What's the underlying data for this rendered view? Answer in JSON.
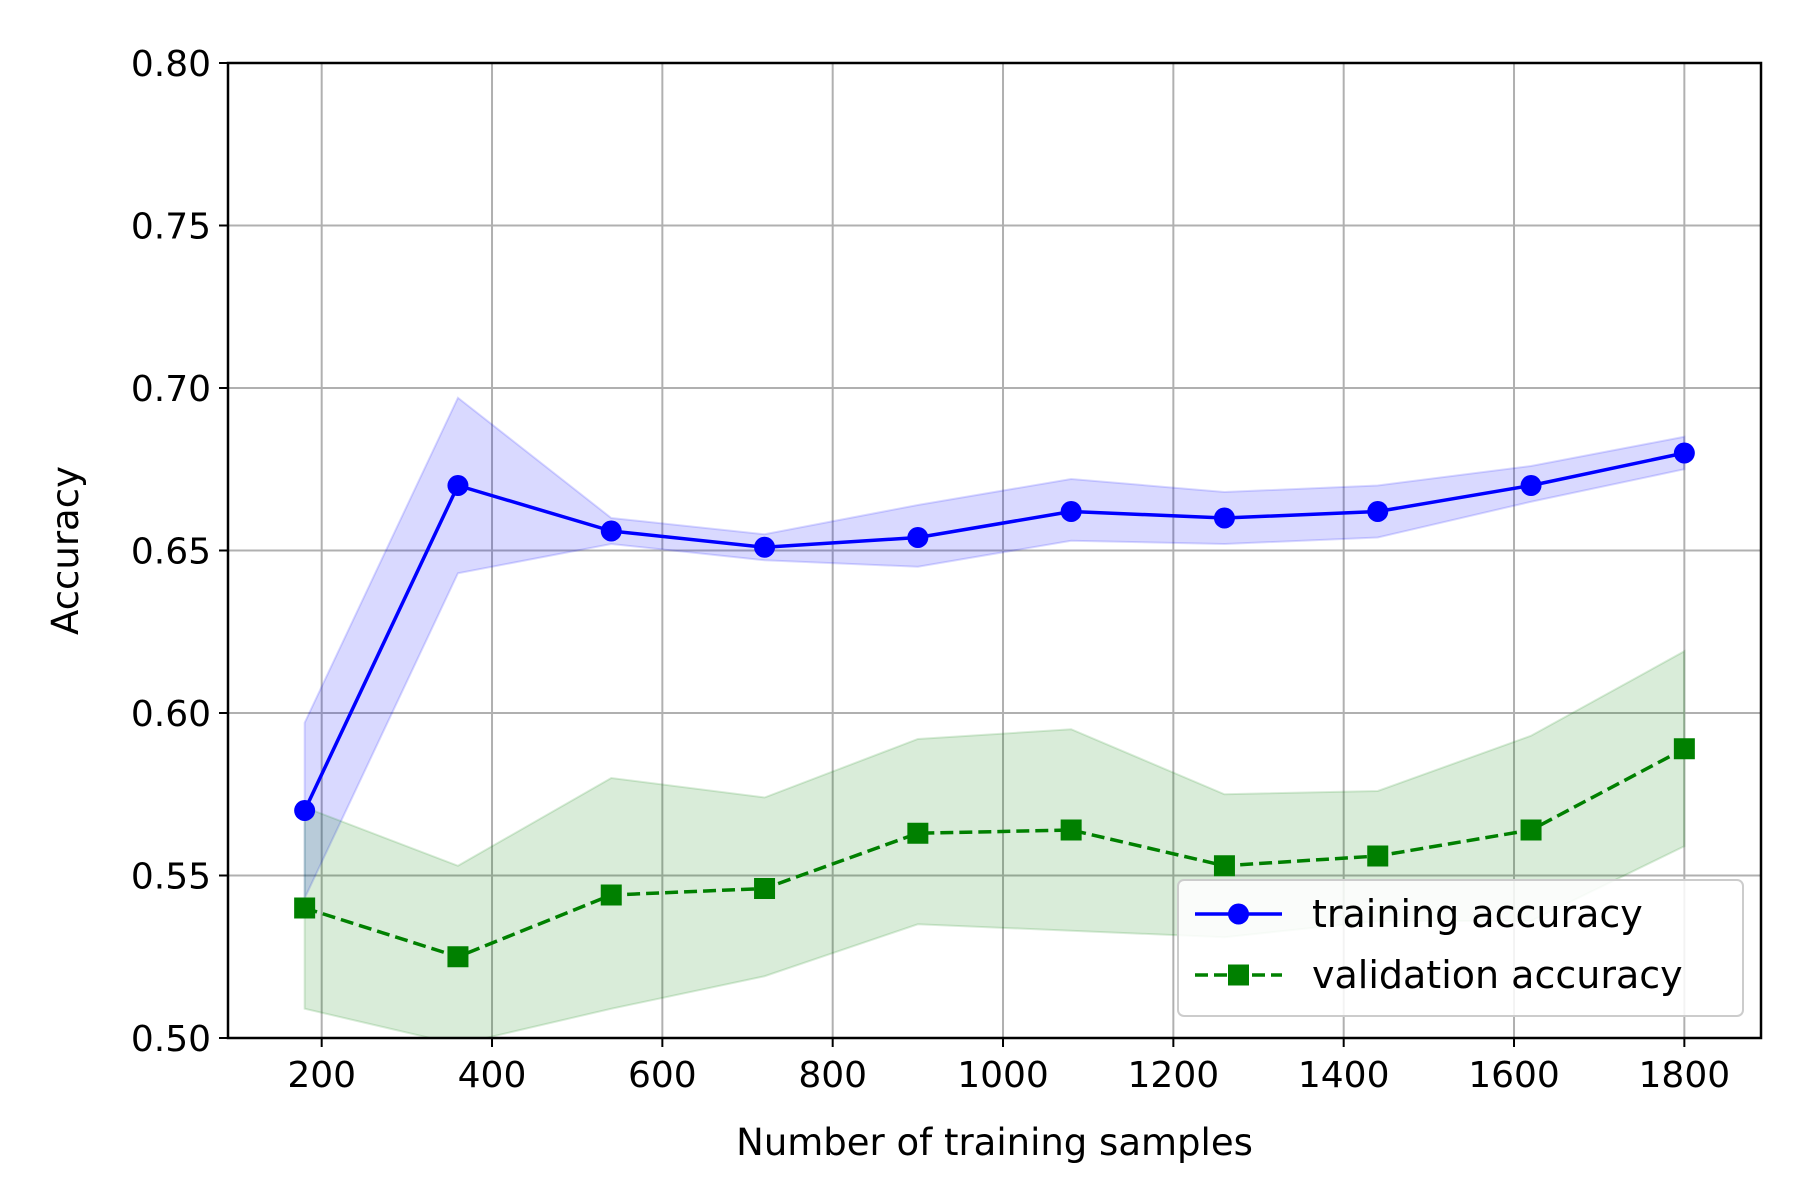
{
  "chart_data": {
    "type": "line",
    "title": "",
    "xlabel": "Number of training samples",
    "ylabel": "Accuracy",
    "xlim": [
      90,
      1890
    ],
    "ylim": [
      0.5,
      0.8
    ],
    "xticks": [
      200,
      400,
      600,
      800,
      1000,
      1200,
      1400,
      1600,
      1800
    ],
    "xtick_labels": [
      "200",
      "400",
      "600",
      "800",
      "1000",
      "1200",
      "1400",
      "1600",
      "1800"
    ],
    "yticks": [
      0.5,
      0.55,
      0.6,
      0.65,
      0.7,
      0.75,
      0.8
    ],
    "ytick_labels": [
      "0.50",
      "0.55",
      "0.60",
      "0.65",
      "0.70",
      "0.75",
      "0.80"
    ],
    "grid": true,
    "legend_position": "lower-right",
    "x": [
      180,
      360,
      540,
      720,
      900,
      1080,
      1260,
      1440,
      1620,
      1800
    ],
    "series": [
      {
        "name": "training accuracy",
        "color": "#0000ff",
        "marker": "circle",
        "linestyle": "solid",
        "values": [
          0.57,
          0.67,
          0.656,
          0.651,
          0.654,
          0.662,
          0.66,
          0.662,
          0.67,
          0.68
        ],
        "band_upper": [
          0.597,
          0.697,
          0.66,
          0.655,
          0.664,
          0.672,
          0.668,
          0.67,
          0.676,
          0.685
        ],
        "band_lower": [
          0.543,
          0.643,
          0.652,
          0.647,
          0.645,
          0.653,
          0.652,
          0.654,
          0.665,
          0.675
        ]
      },
      {
        "name": "validation accuracy",
        "color": "#008000",
        "marker": "square",
        "linestyle": "dashed",
        "values": [
          0.54,
          0.525,
          0.544,
          0.546,
          0.563,
          0.564,
          0.553,
          0.556,
          0.564,
          0.589
        ],
        "band_upper": [
          0.571,
          0.553,
          0.58,
          0.574,
          0.592,
          0.595,
          0.575,
          0.576,
          0.593,
          0.619
        ],
        "band_lower": [
          0.509,
          0.498,
          0.509,
          0.519,
          0.535,
          0.533,
          0.531,
          0.536,
          0.536,
          0.559
        ]
      }
    ]
  }
}
